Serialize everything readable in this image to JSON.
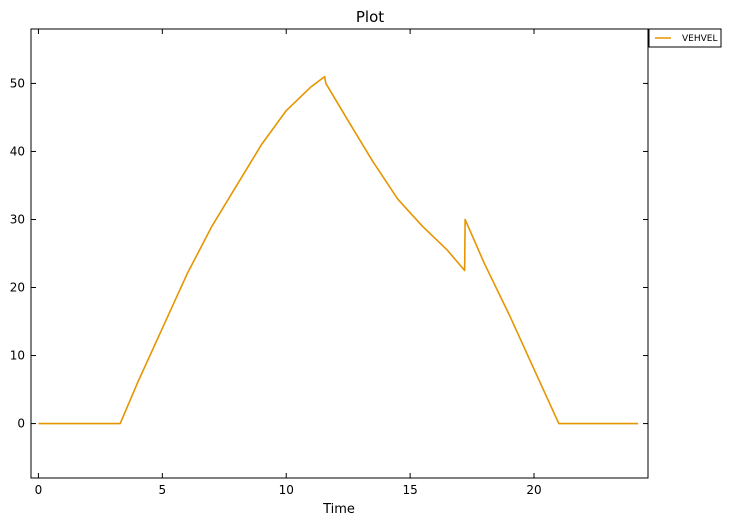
{
  "chart_data": {
    "type": "line",
    "title": "Plot",
    "xlabel": "Time",
    "ylabel": "",
    "xlim": [
      -0.3,
      24.6
    ],
    "ylim": [
      -8,
      58
    ],
    "xticks": [
      0,
      5,
      10,
      15,
      20
    ],
    "yticks": [
      0,
      10,
      20,
      30,
      40,
      50
    ],
    "grid": false,
    "legend_position": "outside-top-right",
    "series": [
      {
        "name": "VEHVEL",
        "color": "#e69500",
        "x": [
          0,
          3.3,
          4.0,
          5.0,
          6.0,
          7.0,
          8.0,
          9.0,
          10.0,
          11.0,
          11.55,
          11.6,
          12.5,
          13.5,
          14.5,
          15.5,
          16.5,
          17.2,
          17.22,
          17.4,
          18.0,
          19.0,
          20.0,
          21.0,
          24.2
        ],
        "values": [
          0,
          0,
          6,
          14,
          22,
          29,
          35,
          41,
          46,
          49.5,
          51,
          50,
          44.5,
          38.5,
          33,
          29,
          25.5,
          22.5,
          30,
          28.5,
          23.5,
          16,
          8,
          0,
          0
        ]
      }
    ]
  }
}
